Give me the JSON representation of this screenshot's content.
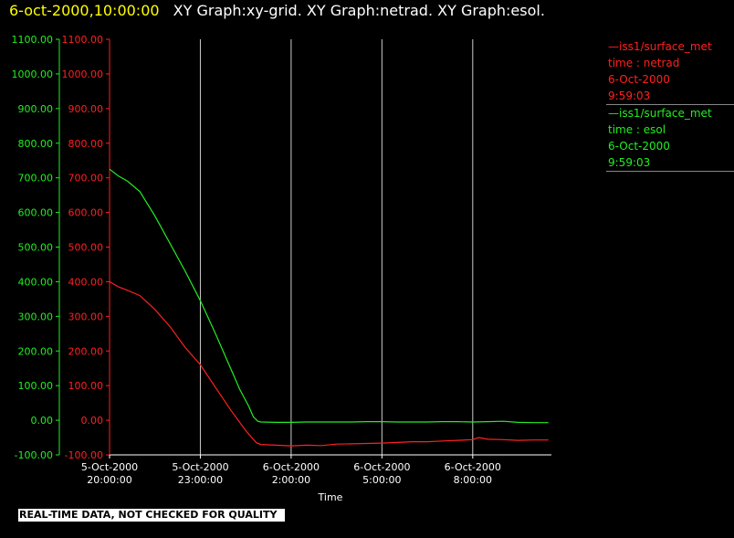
{
  "header": {
    "time": "6-oct-2000,10:00:00",
    "graphs": "XY Graph:xy-grid.  XY Graph:netrad.  XY Graph:esol."
  },
  "legend": [
    {
      "line1": "—iss1/surface_met",
      "line2": "time : netrad",
      "line3": "6-Oct-2000",
      "line4": "9:59:03",
      "color": "#ff2020"
    },
    {
      "line1": "—iss1/surface_met",
      "line2": "time : esol",
      "line3": "6-Oct-2000",
      "line4": "9:59:03",
      "color": "#22ee22"
    }
  ],
  "quality_banner": "REAL-TIME DATA, NOT CHECKED FOR QUALITY",
  "chart_data": {
    "type": "line",
    "xlabel": "Time",
    "ylim": [
      -100,
      1100
    ],
    "xlim_hours": [
      20.0,
      34.6
    ],
    "y_ticks": [
      "-100.00",
      "0.00",
      "100.00",
      "200.00",
      "300.00",
      "400.00",
      "500.00",
      "600.00",
      "700.00",
      "800.00",
      "900.00",
      "1000.00",
      "1100.00"
    ],
    "x_ticks": [
      {
        "hour": 20,
        "date": "5-Oct-2000",
        "time": "20:00:00"
      },
      {
        "hour": 23,
        "date": "5-Oct-2000",
        "time": "23:00:00"
      },
      {
        "hour": 26,
        "date": "6-Oct-2000",
        "time": "2:00:00"
      },
      {
        "hour": 29,
        "date": "6-Oct-2000",
        "time": "5:00:00"
      },
      {
        "hour": 32,
        "date": "6-Oct-2000",
        "time": "8:00:00"
      }
    ],
    "grid": "vertical",
    "axis_colors": {
      "left_outer": "#22ee22",
      "left_inner": "#ff2020",
      "frame": "#ffffff",
      "grid": "#cccccc"
    },
    "series": [
      {
        "name": "netrad",
        "color": "#ff2020",
        "hours": [
          20.0,
          20.3,
          20.6,
          21.0,
          21.5,
          22.0,
          22.5,
          23.0,
          23.5,
          24.0,
          24.5,
          24.85,
          25.0,
          25.5,
          26.0,
          26.5,
          27.0,
          27.5,
          28.0,
          28.5,
          29.0,
          29.5,
          30.0,
          30.5,
          31.0,
          31.5,
          32.0,
          32.2,
          32.5,
          33.0,
          33.5,
          34.0,
          34.5
        ],
        "values": [
          400,
          385,
          375,
          360,
          320,
          270,
          210,
          160,
          95,
          30,
          -30,
          -65,
          -70,
          -72,
          -74,
          -72,
          -73,
          -69,
          -68,
          -67,
          -66,
          -64,
          -62,
          -62,
          -60,
          -58,
          -56,
          -50,
          -55,
          -56,
          -58,
          -57,
          -57
        ]
      },
      {
        "name": "esol",
        "color": "#22ee22",
        "hours": [
          20.0,
          20.3,
          20.6,
          21.0,
          21.5,
          22.0,
          22.5,
          23.0,
          23.5,
          24.0,
          24.3,
          24.6,
          24.75,
          24.9,
          25.0,
          25.5,
          26.0,
          26.5,
          27.0,
          27.5,
          28.0,
          28.5,
          29.0,
          29.5,
          30.0,
          30.5,
          31.0,
          31.5,
          32.0,
          32.5,
          33.0,
          33.5,
          34.0,
          34.5
        ],
        "values": [
          725,
          705,
          690,
          660,
          590,
          510,
          430,
          345,
          250,
          150,
          90,
          40,
          10,
          -3,
          -5,
          -6,
          -6,
          -5,
          -5,
          -5,
          -5,
          -4,
          -4,
          -5,
          -5,
          -5,
          -4,
          -4,
          -5,
          -4,
          -3,
          -6,
          -7,
          -7
        ]
      }
    ]
  }
}
